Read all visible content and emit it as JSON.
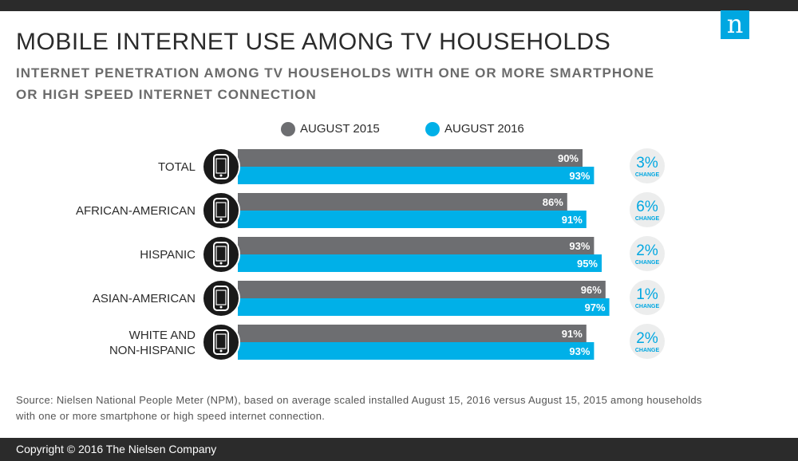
{
  "header": {
    "title": "MOBILE INTERNET USE AMONG TV HOUSEHOLDS",
    "subtitle": "INTERNET PENETRATION AMONG TV HOUSEHOLDS WITH ONE OR MORE SMARTPHONE OR HIGH SPEED INTERNET CONNECTION",
    "logo_letter": "n"
  },
  "colors": {
    "series_2015": "#6d6e71",
    "series_2016": "#00b0e8",
    "brand": "#00a7e1",
    "dark": "#2b2b2b"
  },
  "chart_data": {
    "type": "bar",
    "orientation": "horizontal",
    "categories": [
      "TOTAL",
      "AFRICAN-AMERICAN",
      "HISPANIC",
      "ASIAN-AMERICAN",
      "WHITE AND NON-HISPANIC"
    ],
    "category_lines": [
      [
        "TOTAL"
      ],
      [
        "AFRICAN-AMERICAN"
      ],
      [
        "HISPANIC"
      ],
      [
        "ASIAN-AMERICAN"
      ],
      [
        "WHITE AND",
        "NON-HISPANIC"
      ]
    ],
    "series": [
      {
        "name": "AUGUST 2015",
        "values": [
          90,
          86,
          93,
          96,
          91
        ]
      },
      {
        "name": "AUGUST 2016",
        "values": [
          93,
          91,
          95,
          97,
          93
        ]
      }
    ],
    "change": [
      "3%",
      "6%",
      "2%",
      "1%",
      "2%"
    ],
    "change_label": "CHANGE",
    "value_suffix": "%",
    "row_icon": "smartphone-icon",
    "legend_position": "top",
    "grid": false
  },
  "source": "Source: Nielsen National People Meter (NPM), based on average scaled installed August 15, 2016 versus August 15, 2015 among households with one or more smartphone or high speed internet connection.",
  "footer": {
    "copyright": "Copyright © 2016 The Nielsen Company"
  }
}
